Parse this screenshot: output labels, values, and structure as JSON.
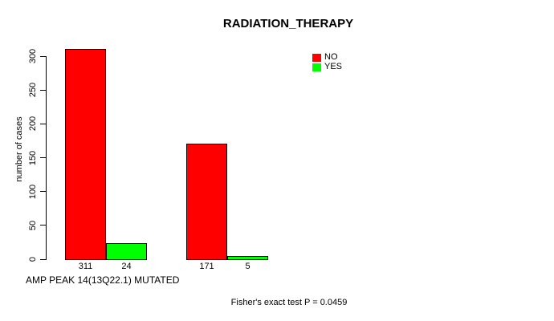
{
  "title": "RADIATION_THERAPY",
  "legend": {
    "items": [
      {
        "label": "NO",
        "color": "#ff0000"
      },
      {
        "label": "YES",
        "color": "#00ff00"
      }
    ]
  },
  "chart_data": {
    "type": "bar",
    "title": "RADIATION_THERAPY",
    "ylabel": "number of cases",
    "xlabel": "AMP PEAK 14(13Q22.1) MUTATED",
    "ylim": [
      0,
      300
    ],
    "yticks": [
      0,
      50,
      100,
      150,
      200,
      250,
      300
    ],
    "grid": false,
    "legend_position": "top-right",
    "categories": [
      "",
      ""
    ],
    "series": [
      {
        "name": "NO",
        "color": "#ff0000",
        "values": [
          311,
          171
        ]
      },
      {
        "name": "YES",
        "color": "#00ff00",
        "values": [
          24,
          5
        ]
      }
    ],
    "bar_value_labels": [
      311,
      24,
      171,
      5
    ],
    "annotation": "Fisher's exact test P = 0.0459",
    "p_value": 0.0459
  }
}
